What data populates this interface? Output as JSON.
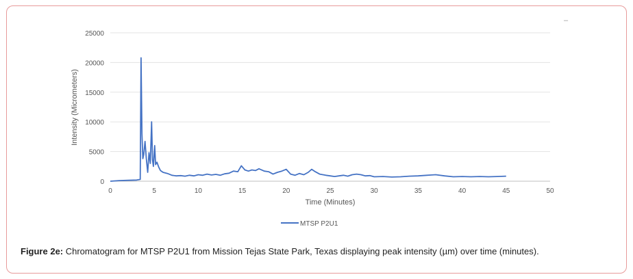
{
  "chart_data": {
    "type": "line",
    "xlabel": "Time (Minutes)",
    "ylabel": "Intensity (Micrometers)",
    "xlim": [
      0,
      50
    ],
    "ylim": [
      0,
      25000
    ],
    "xticks": [
      0,
      5,
      10,
      15,
      20,
      25,
      30,
      35,
      40,
      45,
      50
    ],
    "yticks": [
      0,
      5000,
      10000,
      15000,
      20000,
      25000
    ],
    "grid": true,
    "legend_position": "bottom-center",
    "series": [
      {
        "name": "MTSP P2U1",
        "color": "#4472c4",
        "x": [
          0,
          1,
          2,
          3,
          3.4,
          3.5,
          3.6,
          3.7,
          3.8,
          3.95,
          4.1,
          4.25,
          4.4,
          4.55,
          4.7,
          4.8,
          4.9,
          5.05,
          5.15,
          5.3,
          5.5,
          5.7,
          6,
          6.5,
          7,
          7.5,
          8,
          8.5,
          9,
          9.5,
          10,
          10.5,
          11,
          11.5,
          12,
          12.5,
          13,
          13.5,
          14,
          14.5,
          14.9,
          15.3,
          15.7,
          16.1,
          16.5,
          16.9,
          17.5,
          18,
          18.5,
          19,
          19.5,
          20,
          20.5,
          21,
          21.5,
          22,
          22.5,
          22.9,
          23.3,
          23.8,
          24.5,
          25,
          25.5,
          26,
          26.5,
          27,
          27.5,
          28,
          28.5,
          29,
          29.5,
          30,
          31,
          32,
          33,
          34,
          35,
          36,
          36.5,
          37,
          38,
          39,
          40,
          41,
          42,
          43,
          44,
          45
        ],
        "y": [
          0,
          100,
          150,
          200,
          300,
          20800,
          8000,
          3800,
          4500,
          6700,
          3800,
          1500,
          4800,
          3000,
          10000,
          3600,
          2500,
          6000,
          2800,
          3200,
          2400,
          1800,
          1500,
          1300,
          1000,
          900,
          950,
          850,
          1000,
          900,
          1100,
          1000,
          1200,
          1050,
          1150,
          1000,
          1250,
          1350,
          1700,
          1600,
          2600,
          1900,
          1700,
          1900,
          1800,
          2100,
          1700,
          1600,
          1200,
          1500,
          1700,
          2000,
          1200,
          1000,
          1300,
          1100,
          1500,
          2000,
          1600,
          1200,
          1000,
          900,
          800,
          900,
          1000,
          850,
          1100,
          1200,
          1100,
          900,
          950,
          750,
          800,
          700,
          750,
          850,
          900,
          1000,
          1050,
          1100,
          900,
          750,
          800,
          750,
          800,
          750,
          800,
          850
        ]
      }
    ]
  },
  "caption": {
    "label": "Figure 2e:",
    "text": " Chromatogram for MTSP P2U1 from Mission Tejas State Park, Texas displaying peak intensity (µm) over time (minutes)."
  },
  "corner_mark": "–"
}
